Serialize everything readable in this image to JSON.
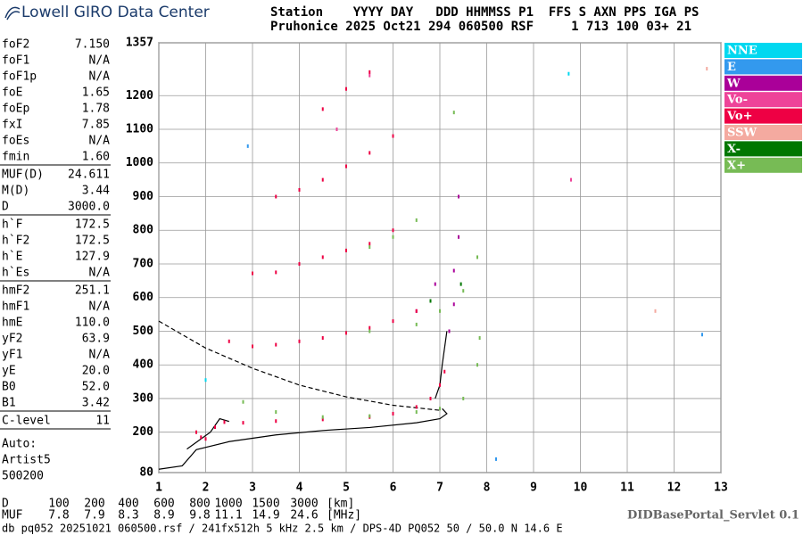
{
  "header": {
    "logo": "Lowell GIRO Data Center",
    "station_head": "Station    YYYY DAY   DDD HHMMSS P1  FFS S AXN PPS IGA PS",
    "station_vals": "Pruhonice 2025 Oct21 294 060500 RSF     1 713 100 03+ 21"
  },
  "parameters": [
    [
      [
        "foF2",
        "7.150"
      ],
      [
        "foF1",
        "N/A"
      ],
      [
        "foF1p",
        "N/A"
      ],
      [
        "foE",
        "1.65"
      ],
      [
        "foEp",
        "1.78"
      ],
      [
        "fxI",
        "7.85"
      ],
      [
        "foEs",
        "N/A"
      ],
      [
        "fmin",
        "1.60"
      ]
    ],
    [
      [
        "MUF(D)",
        "24.611"
      ],
      [
        "M(D)",
        "3.44"
      ],
      [
        "D",
        "3000.0"
      ]
    ],
    [
      [
        "h`F",
        "172.5"
      ],
      [
        "h`F2",
        "172.5"
      ],
      [
        "h`E",
        "127.9"
      ],
      [
        "h`Es",
        "N/A"
      ]
    ],
    [
      [
        "hmF2",
        "251.1"
      ],
      [
        "hmF1",
        "N/A"
      ],
      [
        "hmE",
        "110.0"
      ],
      [
        "yF2",
        "63.9"
      ],
      [
        "yF1",
        "N/A"
      ],
      [
        "yE",
        "20.0"
      ],
      [
        "B0",
        "52.0"
      ],
      [
        "B1",
        "3.42"
      ]
    ],
    [
      [
        "C-level",
        "11"
      ]
    ]
  ],
  "autoscaling": [
    "Auto:",
    "Artist5",
    "500200"
  ],
  "chart_data": {
    "type": "scatter",
    "xlim": [
      1,
      13
    ],
    "ylim": [
      80,
      1357
    ],
    "xticks": [
      1,
      2,
      3,
      4,
      5,
      6,
      7,
      8,
      9,
      10,
      11,
      12,
      13
    ],
    "yticks": [
      80,
      200,
      300,
      400,
      500,
      600,
      700,
      800,
      900,
      1000,
      1100,
      1200,
      1357
    ],
    "grid": true,
    "series": [
      {
        "name": "NNE",
        "color": "#00d8f0",
        "x": [
          9.75,
          2.0
        ],
        "y": [
          1265,
          355
        ]
      },
      {
        "name": "E",
        "color": "#3399ee",
        "x": [
          2.9,
          12.6,
          8.2
        ],
        "y": [
          1050,
          490,
          120
        ]
      },
      {
        "name": "W",
        "color": "#aa0099",
        "x": [
          7.2,
          7.3,
          7.3,
          7.4,
          7.4,
          6.9,
          6.5
        ],
        "y": [
          500,
          580,
          680,
          780,
          900,
          640,
          560
        ]
      },
      {
        "name": "Vo-",
        "color": "#ee4499",
        "x": [
          4.8,
          5.5,
          9.8
        ],
        "y": [
          1100,
          1260,
          950
        ]
      },
      {
        "name": "Vo+",
        "color": "#ee0044",
        "x": [
          1.8,
          1.9,
          2.0,
          2.2,
          2.4,
          2.8,
          3.5,
          4.5,
          5.5,
          6.0,
          6.5,
          6.8,
          7.0,
          7.1,
          2.5,
          3.0,
          3.5,
          4.0,
          4.5,
          5.0,
          5.5,
          6.0,
          6.5,
          3.0,
          3.5,
          4.0,
          4.5,
          5.0,
          5.5,
          6.0,
          3.5,
          4.0,
          4.5,
          5.0,
          5.5,
          6.0,
          4.5,
          5.0,
          5.5
        ],
        "y": [
          200,
          185,
          180,
          215,
          230,
          228,
          233,
          238,
          245,
          255,
          275,
          300,
          340,
          380,
          470,
          455,
          460,
          470,
          480,
          495,
          510,
          530,
          560,
          672,
          675,
          700,
          720,
          740,
          760,
          800,
          900,
          920,
          950,
          990,
          1030,
          1080,
          1160,
          1220,
          1270
        ]
      },
      {
        "name": "SSW",
        "color": "#f4aaa0",
        "x": [
          11.6,
          12.7
        ],
        "y": [
          560,
          1280
        ]
      },
      {
        "name": "X-",
        "color": "#007700",
        "x": [
          7.45,
          6.8
        ],
        "y": [
          640,
          590
        ]
      },
      {
        "name": "X+",
        "color": "#77bb55",
        "x": [
          2.8,
          3.5,
          4.5,
          5.5,
          6.5,
          7.0,
          7.5,
          7.8,
          7.85,
          5.5,
          6.5,
          7.0,
          7.5,
          7.8,
          5.5,
          6.0,
          6.5,
          7.3
        ],
        "y": [
          290,
          260,
          245,
          248,
          260,
          270,
          300,
          400,
          480,
          500,
          520,
          560,
          620,
          720,
          750,
          780,
          830,
          1150
        ]
      }
    ],
    "curves": [
      {
        "color": "#000000",
        "dash": false,
        "x": [
          1,
          1.5,
          1.8,
          2.5,
          3.5,
          4.5,
          5.5,
          6.5,
          7.0,
          7.15,
          7.05
        ],
        "y": [
          90,
          100,
          148,
          172,
          192,
          205,
          214,
          228,
          240,
          255,
          270
        ]
      },
      {
        "color": "#000000",
        "dash": false,
        "x": [
          6.9,
          7.0,
          7.05,
          7.1,
          7.15
        ],
        "y": [
          300,
          340,
          400,
          450,
          500
        ]
      },
      {
        "color": "#000000",
        "dash": false,
        "x": [
          1.6,
          1.9,
          2.1,
          2.3,
          2.5
        ],
        "y": [
          150,
          180,
          200,
          240,
          232
        ]
      },
      {
        "color": "#000000",
        "dash": true,
        "x": [
          1,
          2,
          3,
          4,
          5,
          6,
          7
        ],
        "y": [
          530,
          450,
          390,
          340,
          305,
          280,
          265
        ]
      }
    ]
  },
  "muf_table": {
    "rows": [
      [
        "D",
        "100",
        "200",
        "400",
        "600",
        "800",
        "1000",
        "1500",
        "3000",
        "[km]"
      ],
      [
        "MUF",
        "7.8",
        "7.9",
        "8.3",
        "8.9",
        "9.8",
        "11.1",
        "14.9",
        "24.6",
        "[MHz]"
      ]
    ]
  },
  "footer": {
    "file": "db pq052 20251021 060500.rsf / 241fx512h 5 kHz 2.5 km / DPS-4D PQ052 50 / 50.0 N 14.6 E",
    "servlet": "DIDBasePortal_Servlet 0.1"
  }
}
